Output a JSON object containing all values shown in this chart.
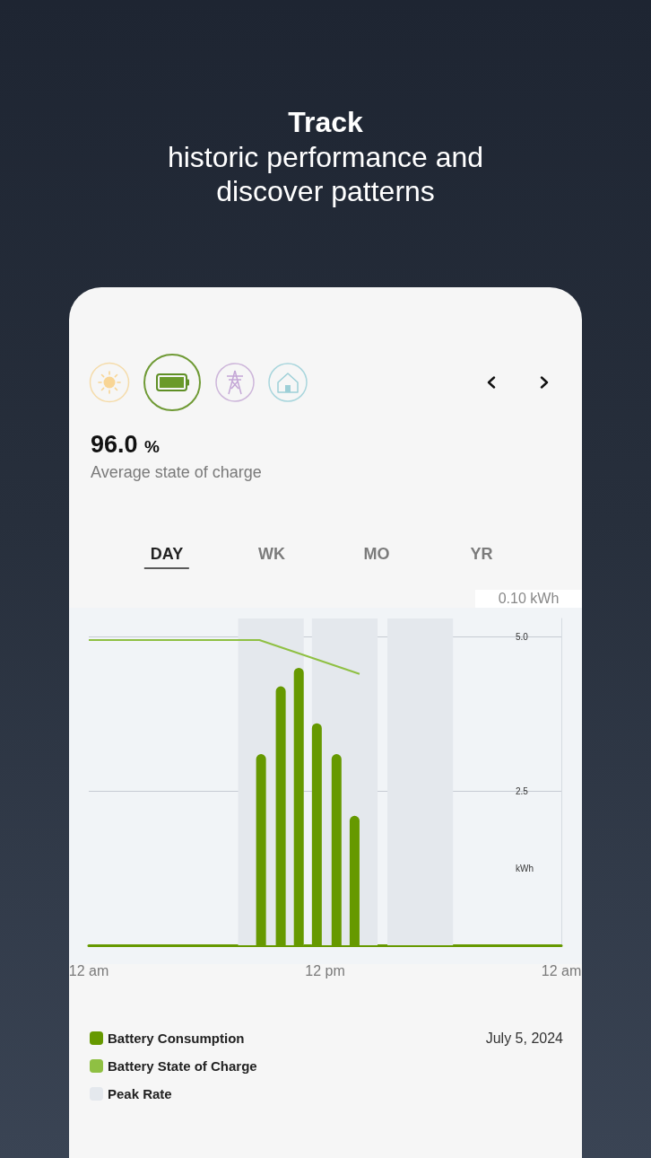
{
  "chart_data": {
    "type": "bar",
    "title": "Track",
    "subtitle": "historic performance and discover patterns",
    "ylabel": "kWh",
    "x": [
      "2024-07-05T08:45",
      "2024-07-05T09:45",
      "2024-07-05T10:40",
      "2024-07-05T11:35",
      "2024-07-05T12:35",
      "2024-07-05T13:30"
    ],
    "series": [
      {
        "name": "Battery Consumption",
        "color": "#669900",
        "values": [
          3.1,
          4.2,
          4.5,
          3.6,
          3.1,
          2.1
        ]
      },
      {
        "name": "Battery State of Charge",
        "type": "line",
        "color": "#8fc043",
        "x": [
          "2024-07-05T00:00",
          "2024-07-05T08:40",
          "2024-07-05T13:45"
        ],
        "values": [
          4.95,
          4.95,
          4.4
        ]
      }
    ],
    "xlim": [
      "2024-07-05T00:00",
      "2024-07-06T00:00"
    ],
    "xticks": [
      {
        "value": "2024-07-05T00:00",
        "label": "12 am"
      },
      {
        "value": "2024-07-05T12:00",
        "label": "12 pm"
      },
      {
        "value": "2024-07-06T00:00",
        "label": "12 am"
      }
    ],
    "ylim": [
      0,
      5.3
    ],
    "yticks": [
      2.5,
      {
        "value": 5,
        "label": "5.0"
      }
    ],
    "bands": [
      {
        "axis": "x",
        "from": "2024-07-05T07:35",
        "to": "2024-07-05T10:55",
        "label": "Peak Rate",
        "color": "#e4e8ed"
      },
      {
        "axis": "x",
        "from": "2024-07-05T11:20",
        "to": "2024-07-05T14:40",
        "color": "#e4e8ed"
      },
      {
        "axis": "x",
        "from": "2024-07-05T15:10",
        "to": "2024-07-05T18:30",
        "color": "#e4e8ed"
      }
    ],
    "grid": "y",
    "legend": "bottom left",
    "marker": "none",
    "annotations": [
      "96.0 %",
      "Average state of charge",
      "DAY",
      "WK",
      "MO",
      "YR",
      "0.10 kWh",
      "July 5, 2024"
    ]
  }
}
